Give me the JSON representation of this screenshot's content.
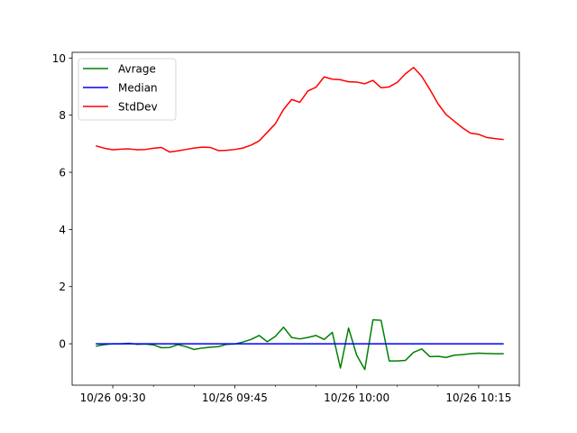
{
  "chart_data": {
    "type": "line",
    "title": "",
    "xlabel": "",
    "ylabel": "",
    "x_unit": "minutes",
    "xlim": [
      "10/26 09:25",
      "10/26 10:20"
    ],
    "ylim": [
      -1.45,
      10.2
    ],
    "grid": false,
    "legend_position": "top-left",
    "x_ticks": [
      {
        "label": "10/26 09:30",
        "x": "10/26 09:30"
      },
      {
        "label": "10/26 09:45",
        "x": "10/26 09:45"
      },
      {
        "label": "10/26 10:00",
        "x": "10/26 10:00"
      },
      {
        "label": "10/26 10:15",
        "x": "10/26 10:15"
      }
    ],
    "x_minor_ticks": [
      "10/26 09:35",
      "10/26 09:40",
      "10/26 09:50",
      "10/26 09:55",
      "10/26 10:05",
      "10/26 10:10",
      "10/26 10:20"
    ],
    "y_ticks": [
      0,
      2,
      4,
      6,
      8,
      10
    ],
    "x": [
      "10/26 09:28",
      "10/26 09:29",
      "10/26 09:30",
      "10/26 09:31",
      "10/26 09:32",
      "10/26 09:33",
      "10/26 09:34",
      "10/26 09:35",
      "10/26 09:36",
      "10/26 09:37",
      "10/26 09:38",
      "10/26 09:39",
      "10/26 09:40",
      "10/26 09:41",
      "10/26 09:42",
      "10/26 09:43",
      "10/26 09:44",
      "10/26 09:45",
      "10/26 09:46",
      "10/26 09:47",
      "10/26 09:48",
      "10/26 09:49",
      "10/26 09:50",
      "10/26 09:51",
      "10/26 09:52",
      "10/26 09:53",
      "10/26 09:54",
      "10/26 09:55",
      "10/26 09:56",
      "10/26 09:57",
      "10/26 09:58",
      "10/26 09:59",
      "10/26 10:00",
      "10/26 10:01",
      "10/26 10:02",
      "10/26 10:03",
      "10/26 10:04",
      "10/26 10:05",
      "10/26 10:06",
      "10/26 10:07",
      "10/26 10:08",
      "10/26 10:09",
      "10/26 10:10",
      "10/26 10:11",
      "10/26 10:12",
      "10/26 10:13",
      "10/26 10:14",
      "10/26 10:15",
      "10/26 10:16",
      "10/26 10:17",
      "10/26 10:18"
    ],
    "series": [
      {
        "name": "Avrage",
        "color": "#008000",
        "values": [
          -0.08,
          -0.03,
          0.0,
          0.0,
          0.02,
          -0.02,
          -0.01,
          -0.04,
          -0.14,
          -0.13,
          -0.03,
          -0.1,
          -0.2,
          -0.15,
          -0.12,
          -0.1,
          -0.02,
          -0.01,
          0.06,
          0.15,
          0.29,
          0.07,
          0.26,
          0.58,
          0.22,
          0.17,
          0.22,
          0.29,
          0.15,
          0.4,
          -0.85,
          0.55,
          -0.4,
          -0.9,
          0.84,
          0.82,
          -0.6,
          -0.6,
          -0.58,
          -0.3,
          -0.18,
          -0.45,
          -0.44,
          -0.48,
          -0.4,
          -0.38,
          -0.35,
          -0.33,
          -0.34,
          -0.35,
          -0.35
        ]
      },
      {
        "name": "Median",
        "color": "#0000ff",
        "values": [
          0.0,
          0.0,
          0.0,
          0.0,
          0.0,
          0.0,
          0.0,
          0.0,
          0.0,
          0.0,
          0.0,
          0.0,
          0.0,
          0.0,
          0.0,
          0.0,
          0.0,
          0.0,
          0.0,
          0.0,
          0.0,
          0.0,
          0.0,
          0.0,
          0.0,
          0.0,
          0.0,
          0.0,
          0.0,
          0.0,
          0.0,
          0.0,
          0.0,
          0.0,
          0.0,
          0.0,
          0.0,
          0.0,
          0.0,
          0.0,
          0.0,
          0.0,
          0.0,
          0.0,
          0.0,
          0.0,
          0.0,
          0.0,
          0.0,
          0.0,
          0.0
        ]
      },
      {
        "name": "StdDev",
        "color": "#ff0000",
        "values": [
          6.92,
          6.84,
          6.79,
          6.81,
          6.82,
          6.79,
          6.8,
          6.84,
          6.87,
          6.71,
          6.75,
          6.8,
          6.85,
          6.88,
          6.87,
          6.76,
          6.77,
          6.8,
          6.85,
          6.95,
          7.1,
          7.4,
          7.7,
          8.2,
          8.55,
          8.45,
          8.85,
          8.98,
          9.34,
          9.26,
          9.24,
          9.17,
          9.16,
          9.1,
          9.22,
          8.96,
          8.99,
          9.15,
          9.45,
          9.67,
          9.36,
          8.9,
          8.4,
          8.02,
          7.79,
          7.56,
          7.37,
          7.33,
          7.22,
          7.18,
          7.15
        ]
      }
    ]
  }
}
